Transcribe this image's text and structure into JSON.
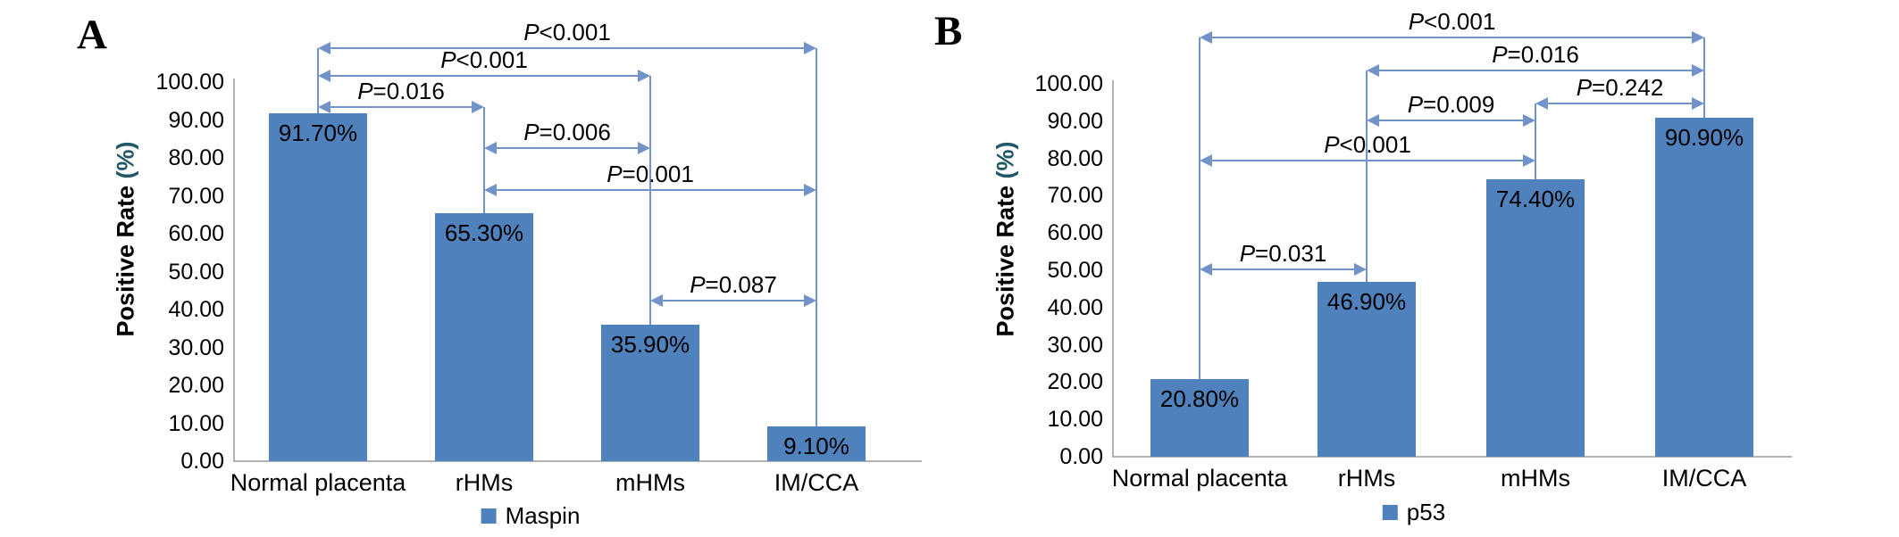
{
  "figure": {
    "background": "#ffffff",
    "panels": [
      {
        "panel_label": "A",
        "legend_label": "Maspin"
      },
      {
        "panel_label": "B",
        "legend_label": "p53"
      }
    ]
  },
  "chart_data": [
    {
      "id": "A",
      "type": "bar",
      "panel_label": "A",
      "title": "",
      "xlabel": "",
      "ylabel": "Positive Rate (%)",
      "ylabel_main": "Positive Rate",
      "ylabel_unit": "(%)",
      "ylim": [
        0,
        100
      ],
      "grid": false,
      "ytick_labels": [
        "0.00",
        "10.00",
        "20.00",
        "30.00",
        "40.00",
        "50.00",
        "60.00",
        "70.00",
        "80.00",
        "90.00",
        "100.00"
      ],
      "categories": [
        "Normal placenta",
        "rHMs",
        "mHMs",
        "IM/CCA"
      ],
      "series": [
        {
          "name": "Maspin",
          "values": [
            91.7,
            65.3,
            35.9,
            9.1
          ]
        }
      ],
      "bar_value_labels": [
        "91.70%",
        "65.30%",
        "35.90%",
        "9.10%"
      ],
      "legend": {
        "label": "Maspin",
        "position": "bottom"
      },
      "colors": {
        "bar": "#4f81bd",
        "annotation": "#7293c8",
        "axis": "#b2b2b2",
        "text": "#000000",
        "ylabel_unit": "#215868"
      },
      "annotations": [
        {
          "label": "P<0.001",
          "from": 0,
          "to": 3,
          "level": 108.9
        },
        {
          "label": "P<0.001",
          "from": 0,
          "to": 2,
          "level": 101.6
        },
        {
          "label": "P=0.016",
          "from": 0,
          "to": 1,
          "level": 93.4
        },
        {
          "label": "P=0.006",
          "from": 1,
          "to": 2,
          "level": 82.6
        },
        {
          "label": "P=0.001",
          "from": 1,
          "to": 3,
          "level": 71.5
        },
        {
          "label": "P=0.087",
          "from": 2,
          "to": 3,
          "level": 42.4
        }
      ]
    },
    {
      "id": "B",
      "type": "bar",
      "panel_label": "B",
      "title": "",
      "xlabel": "",
      "ylabel": "Positive Rate (%)",
      "ylabel_main": "Positive Rate",
      "ylabel_unit": "(%)",
      "ylim": [
        0,
        100
      ],
      "grid": false,
      "ytick_labels": [
        "0.00",
        "10.00",
        "20.00",
        "30.00",
        "40.00",
        "50.00",
        "60.00",
        "70.00",
        "80.00",
        "90.00",
        "100.00"
      ],
      "categories": [
        "Normal placenta",
        "rHMs",
        "mHMs",
        "IM/CCA"
      ],
      "series": [
        {
          "name": "p53",
          "values": [
            20.8,
            46.9,
            74.4,
            90.9
          ]
        }
      ],
      "bar_value_labels": [
        "20.80%",
        "46.90%",
        "74.40%",
        "90.90%"
      ],
      "legend": {
        "label": "p53",
        "position": "bottom"
      },
      "colors": {
        "bar": "#4f81bd",
        "annotation": "#7293c8",
        "axis": "#b2b2b2",
        "text": "#000000",
        "ylabel_unit": "#215868"
      },
      "annotations": [
        {
          "label": "P<0.001",
          "from": 0,
          "to": 3,
          "level": 112.4
        },
        {
          "label": "P=0.016",
          "from": 1,
          "to": 3,
          "level": 103.6
        },
        {
          "label": "P=0.242",
          "from": 2,
          "to": 3,
          "level": 94.7
        },
        {
          "label": "P=0.009",
          "from": 1,
          "to": 2,
          "level": 90.2
        },
        {
          "label": "P<0.001",
          "from": 0,
          "to": 2,
          "level": 79.4
        },
        {
          "label": "P=0.031",
          "from": 0,
          "to": 1,
          "level": 50.2
        }
      ]
    }
  ]
}
